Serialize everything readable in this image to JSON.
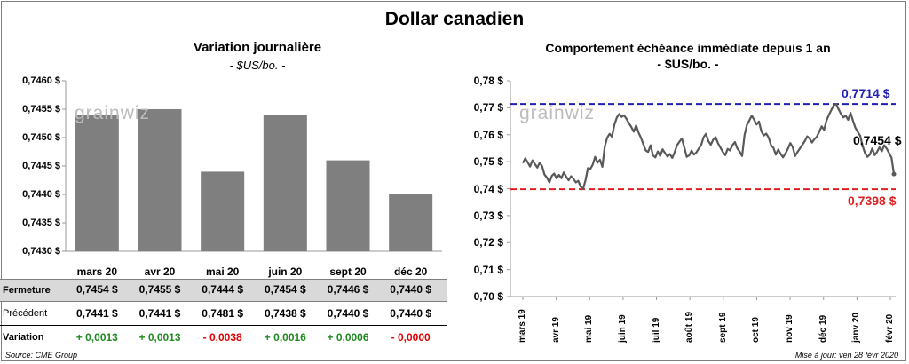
{
  "title": "Dollar canadien",
  "left": {
    "title": "Variation  journalière",
    "subtitle": "- $US/bo. -",
    "watermark": "grainwiz",
    "bar_color": "#7f7f7f",
    "row_labels": {
      "close": "Fermeture",
      "prev": "Précédent",
      "var": "Variation"
    },
    "close": [
      "0,7454  $",
      "0,7455  $",
      "0,7444  $",
      "0,7454  $",
      "0,7446  $",
      "0,7440  $"
    ],
    "prev": [
      "0,7441  $",
      "0,7441  $",
      "0,7481  $",
      "0,7438  $",
      "0,7440  $",
      "0,7440  $"
    ],
    "variation": [
      "+ 0,0013",
      "+ 0,0013",
      "- 0,0038",
      "+ 0,0016",
      "+ 0,0006",
      "- 0,0000"
    ],
    "positive_color": "#1f8a1f",
    "negative_color": "#e00000",
    "source": "Source: CME Group"
  },
  "right": {
    "title": "Comportement échéance immédiate depuis 1 an",
    "subtitle": "- $US/bo. -",
    "watermark": "grainwiz",
    "high_label": "0,7714  $",
    "low_label": "0,7398  $",
    "last_label": "0,7454 $",
    "high_color": "#1f1fb4",
    "low_color": "#e02020",
    "line_color": "#595959",
    "updated": "Mise à jour: ven 28 févr 2020"
  },
  "chart_data": [
    {
      "type": "bar",
      "title": "Variation  journalière",
      "ylabel": "$US/bo.",
      "categories": [
        "mars 20",
        "avr 20",
        "mai 20",
        "juin 20",
        "sept 20",
        "déc 20"
      ],
      "values": [
        0.7454,
        0.7455,
        0.7444,
        0.7454,
        0.7446,
        0.744
      ],
      "ylim": [
        0.743,
        0.746
      ],
      "yticks": [
        "0,7460 $",
        "0,7455 $",
        "0,7450 $",
        "0,7445 $",
        "0,7440 $",
        "0,7435 $",
        "0,7430 $"
      ]
    },
    {
      "type": "line",
      "title": "Comportement échéance immédiate depuis 1 an",
      "ylabel": "$US/bo.",
      "ylim": [
        0.7,
        0.78
      ],
      "yticks": [
        "0,78 $",
        "0,77 $",
        "0,76 $",
        "0,75 $",
        "0,74 $",
        "0,73 $",
        "0,72 $",
        "0,71 $",
        "0,70 $"
      ],
      "xticks": [
        "mars 19",
        "avr 19",
        "mai 19",
        "juin 19",
        "juil 19",
        "août 19",
        "sept 19",
        "oct 19",
        "nov 19",
        "déc 19",
        "janv 20",
        "févr 20"
      ],
      "high": 0.7714,
      "low": 0.7398,
      "last": 0.7454,
      "series": [
        {
          "name": "Échéance immédiate",
          "values": [
            0.7495,
            0.7512,
            0.7498,
            0.7482,
            0.7505,
            0.7491,
            0.7478,
            0.7496,
            0.7483,
            0.7452,
            0.7441,
            0.7423,
            0.7447,
            0.7456,
            0.7438,
            0.7451,
            0.7439,
            0.746,
            0.7444,
            0.7431,
            0.7446,
            0.7437,
            0.7423,
            0.7429,
            0.7408,
            0.7399,
            0.7431,
            0.7476,
            0.7473,
            0.7489,
            0.7518,
            0.7496,
            0.7507,
            0.7481,
            0.7556,
            0.7589,
            0.7603,
            0.7593,
            0.7637,
            0.7664,
            0.7677,
            0.7666,
            0.7672,
            0.7659,
            0.7643,
            0.7629,
            0.7611,
            0.7634,
            0.7608,
            0.7589,
            0.7565,
            0.7542,
            0.7536,
            0.7561,
            0.7523,
            0.7516,
            0.7538,
            0.7521,
            0.7546,
            0.7532,
            0.7519,
            0.7528,
            0.7514,
            0.7535,
            0.7561,
            0.7574,
            0.7586,
            0.7553,
            0.7518,
            0.7523,
            0.7541,
            0.7526,
            0.7534,
            0.7548,
            0.7562,
            0.7591,
            0.7603,
            0.7576,
            0.7563,
            0.7581,
            0.7591,
            0.7568,
            0.7552,
            0.7536,
            0.7524,
            0.7547,
            0.7542,
            0.7561,
            0.7573,
            0.7549,
            0.7537,
            0.7521,
            0.7598,
            0.7636,
            0.7653,
            0.7671,
            0.7655,
            0.7638,
            0.7649,
            0.7613,
            0.7597,
            0.7604,
            0.7589,
            0.7561,
            0.7551,
            0.7526,
            0.7545,
            0.7529,
            0.7516,
            0.7531,
            0.7548,
            0.7569,
            0.7554,
            0.7521,
            0.7536,
            0.7549,
            0.7563,
            0.7576,
            0.7594,
            0.7586,
            0.7571,
            0.7583,
            0.7592,
            0.7611,
            0.7631,
            0.7618,
            0.7652,
            0.7673,
            0.7691,
            0.7709,
            0.7714,
            0.7695,
            0.7678,
            0.7664,
            0.7671,
            0.7655,
            0.7681,
            0.7652,
            0.7626,
            0.7611,
            0.7596,
            0.7559,
            0.7532,
            0.7518,
            0.7526,
            0.7549,
            0.7524,
            0.7536,
            0.7553,
            0.7539,
            0.7561,
            0.7548,
            0.7532,
            0.7515,
            0.7454
          ]
        }
      ]
    }
  ]
}
